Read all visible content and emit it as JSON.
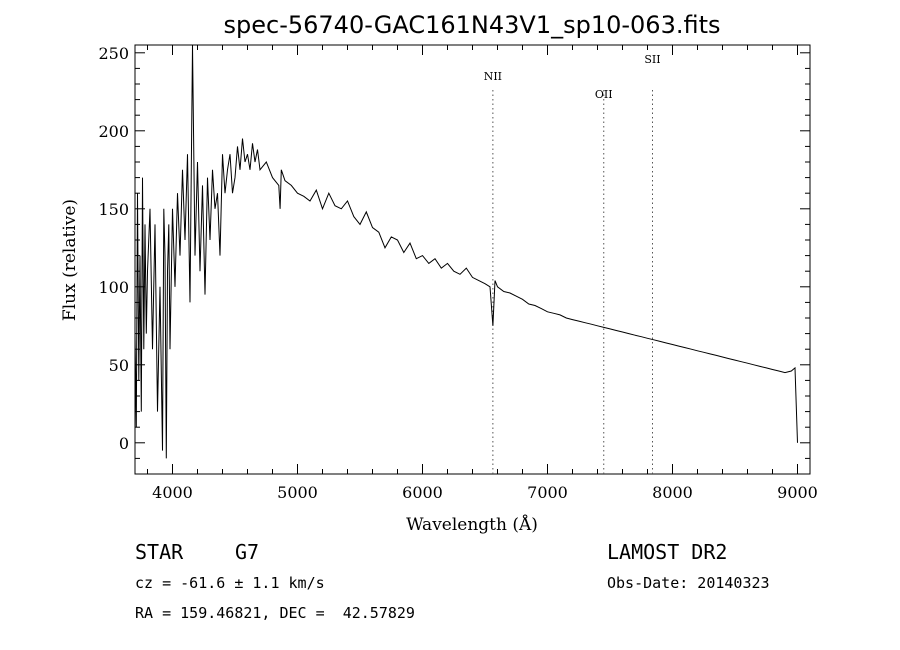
{
  "chart_data": {
    "type": "line",
    "title": "spec-56740-GAC161N43V1_sp10-063.fits",
    "xlabel": "Wavelength (Å)",
    "ylabel": "Flux (relative)",
    "xlim": [
      3700,
      9100
    ],
    "ylim": [
      -20,
      255
    ],
    "xticks": [
      4000,
      5000,
      6000,
      7000,
      8000,
      9000
    ],
    "yticks": [
      0,
      50,
      100,
      150,
      200,
      250
    ],
    "grid": false,
    "series": [
      {
        "x": [
          3700,
          3710,
          3720,
          3730,
          3740,
          3750,
          3760,
          3770,
          3780,
          3790,
          3800,
          3820,
          3840,
          3860,
          3880,
          3900,
          3920,
          3930,
          3940,
          3950,
          3960,
          3970,
          3980,
          4000,
          4020,
          4040,
          4060,
          4080,
          4100,
          4120,
          4140,
          4160,
          4180,
          4200,
          4220,
          4240,
          4260,
          4280,
          4300,
          4320,
          4340,
          4360,
          4380,
          4400,
          4420,
          4440,
          4460,
          4480,
          4500,
          4520,
          4540,
          4560,
          4580,
          4600,
          4620,
          4640,
          4660,
          4680,
          4700,
          4750,
          4800,
          4850,
          4861,
          4870,
          4900,
          4950,
          5000,
          5050,
          5100,
          5150,
          5200,
          5250,
          5300,
          5350,
          5400,
          5450,
          5500,
          5550,
          5600,
          5650,
          5700,
          5750,
          5800,
          5850,
          5900,
          5950,
          6000,
          6050,
          6100,
          6150,
          6200,
          6250,
          6300,
          6350,
          6400,
          6450,
          6500,
          6540,
          6563,
          6580,
          6600,
          6650,
          6700,
          6750,
          6800,
          6850,
          6900,
          6950,
          7000,
          7050,
          7100,
          7150,
          7200,
          7250,
          7300,
          7350,
          7400,
          7450,
          7500,
          7550,
          7600,
          7650,
          7700,
          7750,
          7800,
          7850,
          7900,
          7950,
          8000,
          8050,
          8100,
          8150,
          8200,
          8250,
          8300,
          8350,
          8400,
          8450,
          8500,
          8550,
          8600,
          8650,
          8700,
          8750,
          8800,
          8850,
          8900,
          8950,
          8980,
          9000
        ],
        "values": [
          70,
          10,
          160,
          40,
          120,
          20,
          170,
          60,
          140,
          70,
          110,
          150,
          60,
          140,
          20,
          100,
          -5,
          150,
          120,
          -10,
          110,
          140,
          60,
          150,
          100,
          160,
          120,
          175,
          130,
          185,
          90,
          255,
          120,
          180,
          110,
          165,
          95,
          170,
          130,
          175,
          150,
          160,
          120,
          185,
          160,
          175,
          185,
          160,
          170,
          190,
          175,
          195,
          180,
          185,
          175,
          192,
          180,
          188,
          175,
          180,
          170,
          165,
          150,
          175,
          168,
          165,
          160,
          158,
          155,
          162,
          150,
          160,
          152,
          150,
          155,
          145,
          140,
          148,
          138,
          135,
          125,
          132,
          130,
          122,
          128,
          118,
          120,
          115,
          118,
          112,
          115,
          110,
          108,
          112,
          106,
          104,
          102,
          100,
          75,
          104,
          100,
          97,
          96,
          94,
          92,
          89,
          88,
          86,
          84,
          83,
          82,
          80,
          79,
          78,
          77,
          76,
          75,
          74,
          73,
          72,
          71,
          70,
          69,
          68,
          67,
          66,
          65,
          64,
          63,
          62,
          61,
          60,
          59,
          58,
          57,
          56,
          55,
          54,
          53,
          52,
          51,
          50,
          49,
          48,
          47,
          46,
          45,
          46,
          48,
          0
        ]
      }
    ],
    "annotations": [
      {
        "label": "NII",
        "x": 6563
      },
      {
        "label": "OII",
        "x": 7450
      },
      {
        "label": "SII",
        "x": 7840
      }
    ]
  },
  "info": {
    "class": "STAR",
    "subclass": "G7",
    "survey": "LAMOST DR2",
    "cz": "cz = -61.6 ± 1.1 km/s",
    "obs_date": "Obs-Date: 20140323",
    "radec": "RA = 159.46821, DEC =  42.57829"
  }
}
